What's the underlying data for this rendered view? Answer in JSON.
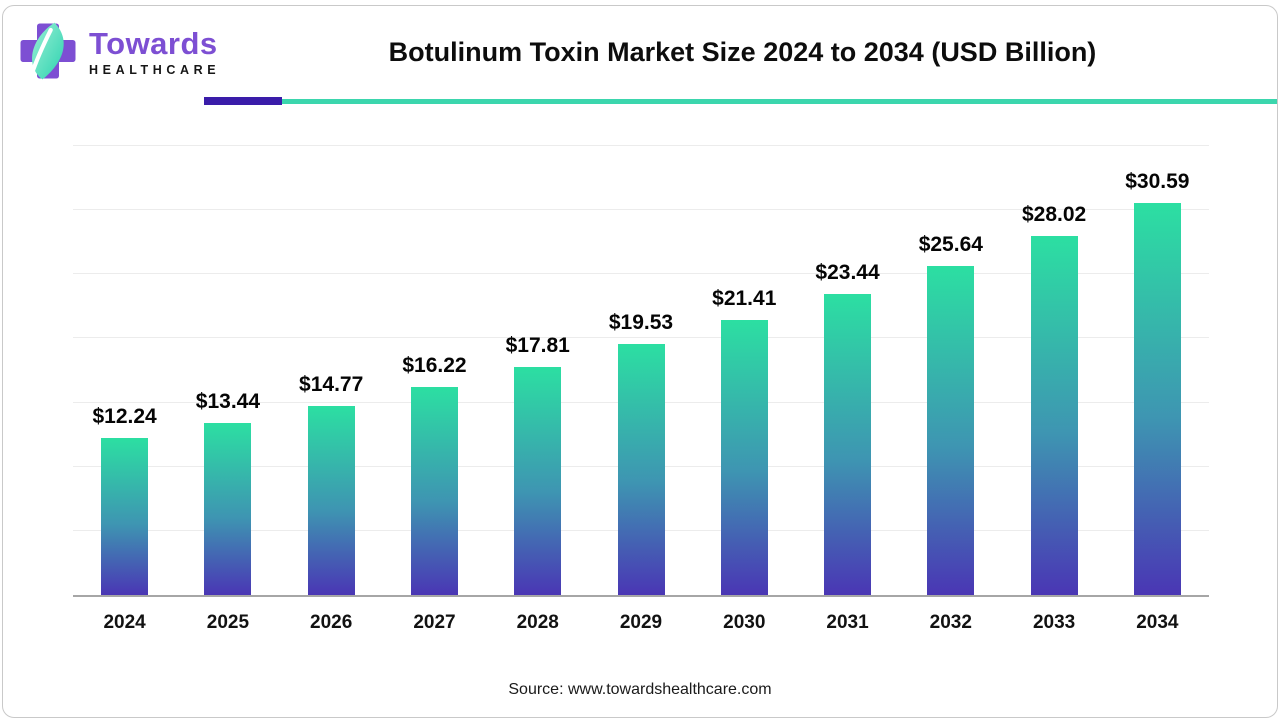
{
  "brand": {
    "name": "Towards",
    "tagline": "HEALTHCARE",
    "logo_cross_color": "#7d4fd3",
    "leaf_color_light": "#9bf0d4",
    "leaf_color_dark": "#2cd2b0"
  },
  "header": {
    "title": "Botulinum Toxin Market Size 2024 to 2034 (USD Billion)",
    "accent_purple": "#3a1ca9",
    "accent_teal": "#3bd6ad"
  },
  "chart_data": {
    "type": "bar",
    "title": "Botulinum Toxin Market Size 2024 to 2034 (USD Billion)",
    "categories": [
      "2024",
      "2025",
      "2026",
      "2027",
      "2028",
      "2029",
      "2030",
      "2031",
      "2032",
      "2033",
      "2034"
    ],
    "values": [
      12.24,
      13.44,
      14.77,
      16.22,
      17.81,
      19.53,
      21.41,
      23.44,
      25.64,
      28.02,
      30.59
    ],
    "value_prefix": "$",
    "value_decimals": 2,
    "xlabel": "",
    "ylabel": "",
    "ylim": [
      0,
      35
    ],
    "gridline_step": 5,
    "grid": "horizontal-light",
    "legend": "none",
    "y_axis_labels_visible": false,
    "bar_gradient_top": "#2cdfa2",
    "bar_gradient_mid": "#3e95b2",
    "bar_gradient_bottom": "#4a36b4",
    "gridline_color": "#ececec",
    "axis_line_color": "#a6a6a6"
  },
  "footer": {
    "source": "Source: www.towardshealthcare.com"
  }
}
